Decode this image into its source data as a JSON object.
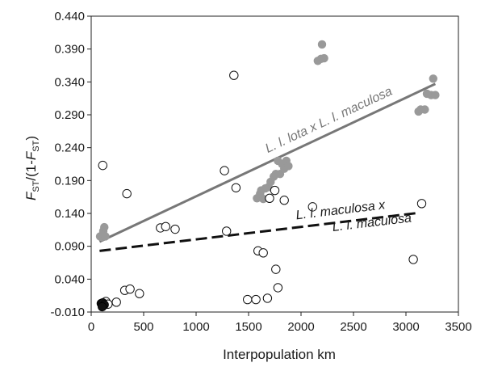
{
  "chart_data": {
    "type": "scatter",
    "xlabel": "Interpopulation km",
    "ylabel": {
      "F1": "F",
      "sub1": "ST",
      "mid": "/(1-",
      "F2": "F",
      "sub2": "ST",
      "end": ")"
    },
    "xlim": [
      0,
      3500
    ],
    "ylim": [
      -0.01,
      0.44
    ],
    "x_ticks": [
      "0",
      "500",
      "1000",
      "1500",
      "2000",
      "2500",
      "3000",
      "3500"
    ],
    "y_ticks": [
      "-0.010",
      "0.040",
      "0.090",
      "0.140",
      "0.190",
      "0.240",
      "0.290",
      "0.340",
      "0.390",
      "0.440"
    ],
    "grid": false,
    "colors": {
      "filled_gray": "#999999",
      "filled_black": "#111111",
      "trend_gray": "#777777",
      "trend_black": "#111111"
    },
    "series": [
      {
        "marker": "filled-gray",
        "points": [
          [
            85,
            0.105
          ],
          [
            100,
            0.104
          ],
          [
            115,
            0.113
          ],
          [
            125,
            0.119
          ],
          [
            135,
            0.105
          ],
          [
            1580,
            0.163
          ],
          [
            1610,
            0.17
          ],
          [
            1620,
            0.175
          ],
          [
            1640,
            0.162
          ],
          [
            1660,
            0.178
          ],
          [
            1690,
            0.18
          ],
          [
            1710,
            0.188
          ],
          [
            1740,
            0.196
          ],
          [
            1760,
            0.2
          ],
          [
            1780,
            0.22
          ],
          [
            1800,
            0.2
          ],
          [
            1820,
            0.215
          ],
          [
            1840,
            0.208
          ],
          [
            1860,
            0.22
          ],
          [
            1880,
            0.212
          ],
          [
            2160,
            0.372
          ],
          [
            2190,
            0.375
          ],
          [
            2200,
            0.397
          ],
          [
            2220,
            0.376
          ],
          [
            3120,
            0.295
          ],
          [
            3140,
            0.298
          ],
          [
            3180,
            0.298
          ],
          [
            3200,
            0.322
          ],
          [
            3240,
            0.32
          ],
          [
            3260,
            0.345
          ],
          [
            3280,
            0.32
          ]
        ]
      },
      {
        "marker": "open",
        "points": [
          [
            110,
            0.213
          ],
          [
            130,
            0.005
          ],
          [
            140,
            0.006
          ],
          [
            160,
            0.002
          ],
          [
            240,
            0.005
          ],
          [
            320,
            0.023
          ],
          [
            340,
            0.17
          ],
          [
            370,
            0.025
          ],
          [
            460,
            0.018
          ],
          [
            660,
            0.118
          ],
          [
            710,
            0.12
          ],
          [
            800,
            0.116
          ],
          [
            1270,
            0.205
          ],
          [
            1290,
            0.113
          ],
          [
            1360,
            0.35
          ],
          [
            1380,
            0.179
          ],
          [
            1490,
            0.009
          ],
          [
            1570,
            0.009
          ],
          [
            1590,
            0.083
          ],
          [
            1640,
            0.08
          ],
          [
            1680,
            0.011
          ],
          [
            1700,
            0.163
          ],
          [
            1750,
            0.175
          ],
          [
            1760,
            0.055
          ],
          [
            1780,
            0.027
          ],
          [
            1840,
            0.16
          ],
          [
            2110,
            0.15
          ],
          [
            3070,
            0.07
          ],
          [
            3150,
            0.155
          ]
        ]
      },
      {
        "marker": "filled-black",
        "points": [
          [
            95,
            0.003
          ],
          [
            110,
            0.004
          ],
          [
            125,
            0.001
          ],
          [
            105,
            -0.002
          ]
        ]
      }
    ],
    "trendlines": [
      {
        "name": "L. l. lota x L. l. maculosa",
        "style": "solid",
        "color": "#777777",
        "x": [
          80,
          3280
        ],
        "y": [
          0.097,
          0.337
        ]
      },
      {
        "name": "L. l. maculosa x L. l. maculosa",
        "label_line1": "L. l. maculosa x",
        "label_line2": "L. l. maculosa",
        "style": "dashed",
        "color": "#111111",
        "x": [
          80,
          3130
        ],
        "y": [
          0.083,
          0.141
        ]
      }
    ]
  }
}
